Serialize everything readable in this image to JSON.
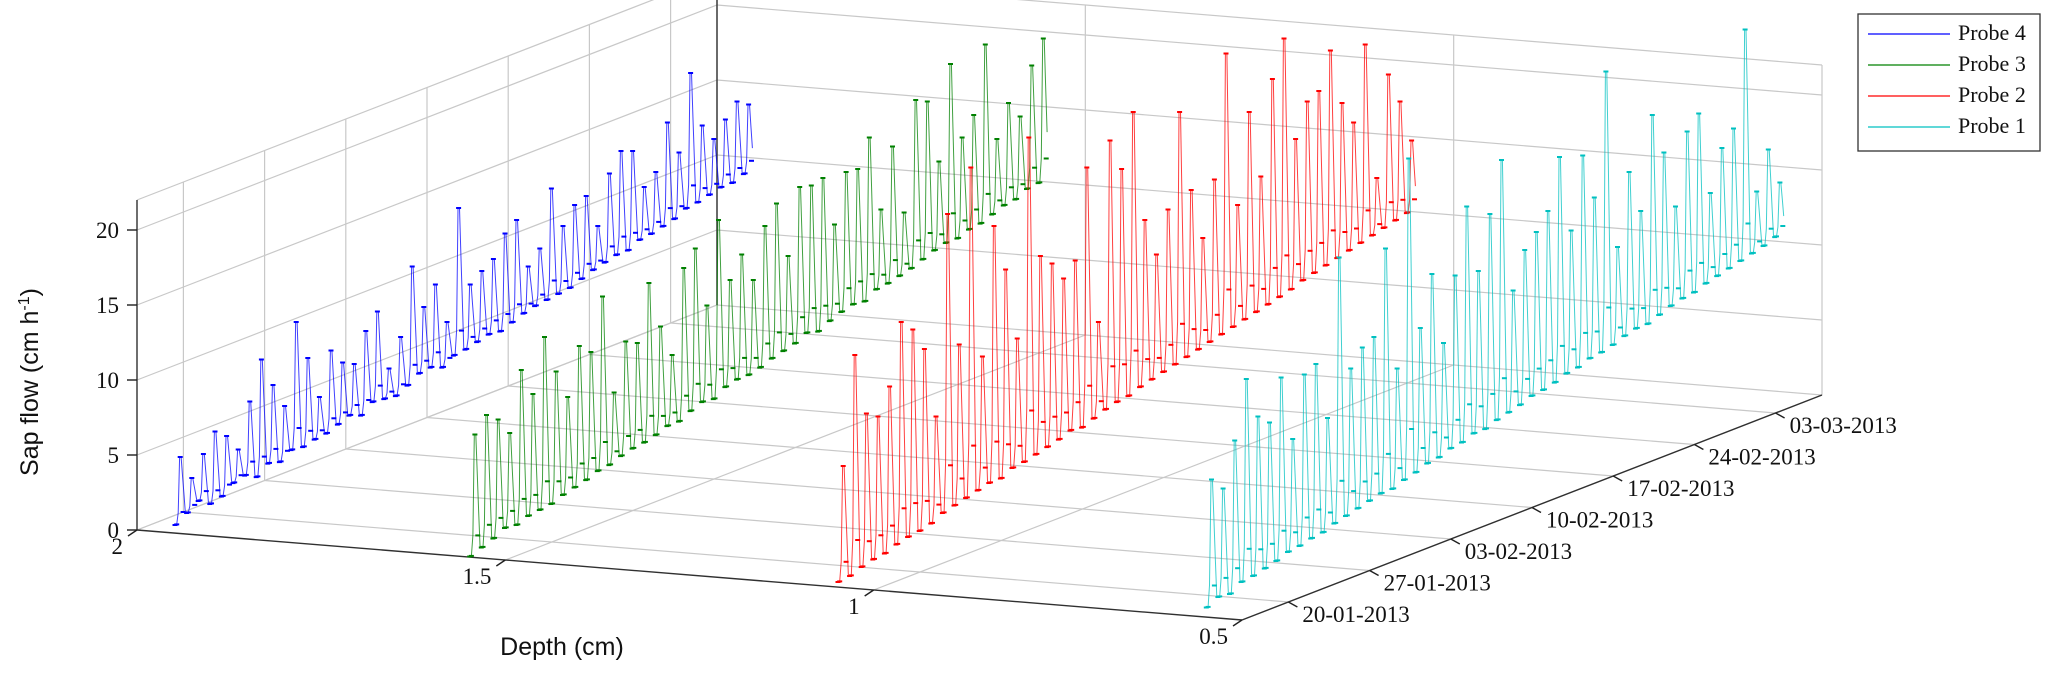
{
  "chart_data": {
    "type": "line",
    "subtype": "3d-waterfall",
    "title": "",
    "ylabel": "Sap flow (cm h",
    "ylabel_sup": "-1",
    "ylabel_close": ")",
    "xlabel": "Depth (cm)",
    "zlabel": "",
    "ylim": [
      0,
      22
    ],
    "yticks": [
      "0",
      "5",
      "10",
      "15",
      "20"
    ],
    "depth_ticks": [
      "2",
      "1.5",
      "1",
      "0.5"
    ],
    "depth_range": [
      0.5,
      2
    ],
    "date_ticks": [
      "20-01-2013",
      "27-01-2013",
      "03-02-2013",
      "10-02-2013",
      "17-02-2013",
      "24-02-2013",
      "03-03-2013"
    ],
    "date_range": [
      "2013-01-16",
      "2013-03-07"
    ],
    "grid": true,
    "legend_position": "top-right",
    "series": [
      {
        "name": "Probe 4",
        "depth": 1.95,
        "color": "#0000ff",
        "daily_peak": [
          4.9,
          3.2,
          4.5,
          5.7,
          5.1,
          3.9,
          6.8,
          9.3,
          7.3,
          5.6,
          10.9,
          8.2,
          5.3,
          8.1,
          7.0,
          6.6,
          8.5,
          9.5,
          5.4,
          7.2,
          11.6,
          8.6,
          9.8,
          7.0,
          14.3,
          8.9,
          9.5,
          10.0,
          11.4,
          12.0,
          8.6,
          9.5,
          13.2,
          10.4,
          11.5,
          11.8,
          9.5,
          12.7,
          13.9,
          13.6,
          10.9,
          11.6,
          14.6,
          12.3,
          17.3,
          13.5,
          12.3,
          13.3,
          14.2,
          13.7
        ],
        "daily_base": [
          0.5,
          1.0,
          1.5,
          1.0,
          1.2,
          1.8,
          2.0,
          1.6,
          2.2,
          2.0,
          2.5,
          2.4,
          2.6,
          2.7,
          3.0,
          3.3,
          3.0,
          3.6,
          3.5,
          3.4,
          3.8,
          4.3,
          4.4,
          4.1,
          4.6,
          4.7,
          4.9,
          5.1,
          5.0,
          5.3,
          5.6,
          5.8,
          5.9,
          6.0,
          6.1,
          6.4,
          6.7,
          6.9,
          7.1,
          7.1,
          7.5,
          7.6,
          7.8,
          8.0,
          8.4,
          8.5,
          8.7,
          8.9,
          8.9,
          9.2
        ]
      },
      {
        "name": "Probe 3",
        "depth": 1.55,
        "color": "#008000",
        "daily_peak": [
          8.0,
          9.0,
          8.4,
          7.2,
          11.1,
          9.2,
          12.7,
          10.1,
          8.1,
          11.2,
          10.5,
          13.9,
          7.2,
          10.3,
          9.9,
          13.6,
          10.4,
          8.2,
          13.7,
          14.7,
          10.6,
          16.0,
          11.7,
          13.1,
          11.1,
          14.4,
          15.6,
          11.8,
          16.1,
          15.9,
          16.1,
          12.7,
          15.9,
          15.8,
          17.6,
          12.5,
          16.4,
          11.7,
          18.9,
          18.5,
          14.2,
          20.4,
          15.2,
          16.4,
          20.8,
          14.2,
          16.3,
          15.1,
          18.2,
          19.7
        ],
        "daily_base": [
          0.0,
          0.3,
          0.6,
          1.0,
          0.9,
          1.2,
          1.3,
          1.4,
          1.7,
          1.9,
          2.1,
          2.4,
          2.5,
          2.8,
          3.0,
          3.1,
          3.3,
          3.6,
          3.6,
          4.0,
          4.3,
          4.2,
          4.7,
          4.9,
          4.9,
          5.1,
          5.4,
          5.6,
          5.8,
          6.2,
          6.0,
          6.4,
          6.7,
          6.9,
          6.8,
          7.3,
          7.4,
          7.6,
          7.8,
          8.1,
          8.4,
          8.6,
          8.6,
          8.9,
          9.0,
          9.3,
          9.6,
          9.7,
          10.1,
          10.2
        ]
      },
      {
        "name": "Probe 2",
        "depth": 1.05,
        "color": "#ff0000",
        "daily_peak": [
          7.9,
          15.0,
          10.8,
          10.3,
          12.0,
          16.0,
          15.2,
          13.6,
          8.8,
          22.0,
          13.0,
          24.5,
          11.6,
          20.0,
          16.8,
          11.9,
          25.0,
          16.8,
          16.0,
          14.7,
          15.6,
          21.5,
          10.9,
          22.7,
          20.5,
          24.0,
          16.5,
          13.9,
          16.6,
          22.8,
          17.3,
          13.8,
          17.4,
          25.5,
          15.1,
          21.0,
          16.4,
          22.6,
          25.0,
          18.0,
          20.2,
          20.6,
          23.0,
          19.2,
          17.6,
          22.5,
          13.3,
          19.9,
          17.8,
          14.9
        ],
        "daily_base": [
          0.3,
          0.4,
          0.7,
          0.9,
          1.0,
          1.3,
          1.5,
          1.6,
          1.8,
          2.2,
          2.4,
          2.6,
          2.8,
          3.0,
          3.0,
          3.4,
          3.5,
          3.7,
          3.9,
          4.1,
          4.4,
          4.3,
          4.6,
          4.9,
          5.1,
          5.2,
          5.5,
          5.7,
          5.9,
          6.1,
          6.3,
          6.5,
          6.7,
          6.9,
          7.1,
          7.3,
          7.5,
          7.7,
          7.9,
          8.1,
          8.4,
          8.6,
          8.8,
          9.0,
          9.2,
          9.4,
          9.6,
          9.8,
          10.0,
          10.2
        ]
      },
      {
        "name": "Probe 1",
        "depth": 0.55,
        "color": "#00c0c0",
        "daily_peak": [
          9.0,
          8.1,
          11.0,
          14.8,
          12.0,
          11.3,
          14.0,
          9.6,
          13.6,
          14.0,
          10.1,
          20.5,
          12.8,
          13.9,
          14.3,
          19.9,
          11.6,
          25.3,
          13.7,
          17.0,
          12.1,
          16.3,
          20.6,
          16.0,
          19.5,
          22.8,
          13.8,
          16.2,
          17.1,
          18.2,
          21.5,
          16.3,
          21.0,
          17.9,
          26.0,
          14.0,
          18.7,
          15.8,
          21.9,
          19.1,
          15.2,
          19.9,
          20.8,
          15.2,
          17.9,
          18.9,
          25.2,
          14.1,
          16.6,
          14.1
        ],
        "daily_base": [
          0.6,
          1.0,
          0.9,
          1.4,
          1.5,
          1.7,
          1.9,
          2.2,
          2.3,
          2.5,
          2.6,
          2.9,
          3.1,
          3.3,
          3.5,
          3.7,
          3.7,
          4.0,
          4.2,
          4.5,
          4.6,
          4.9,
          5.0,
          5.3,
          5.3,
          5.6,
          5.8,
          6.0,
          6.3,
          6.4,
          6.6,
          6.9,
          7.0,
          7.3,
          7.4,
          7.6,
          7.9,
          8.1,
          8.1,
          8.4,
          8.7,
          8.9,
          9.0,
          9.3,
          9.5,
          9.7,
          9.9,
          10.1,
          10.3,
          10.6
        ]
      }
    ]
  }
}
